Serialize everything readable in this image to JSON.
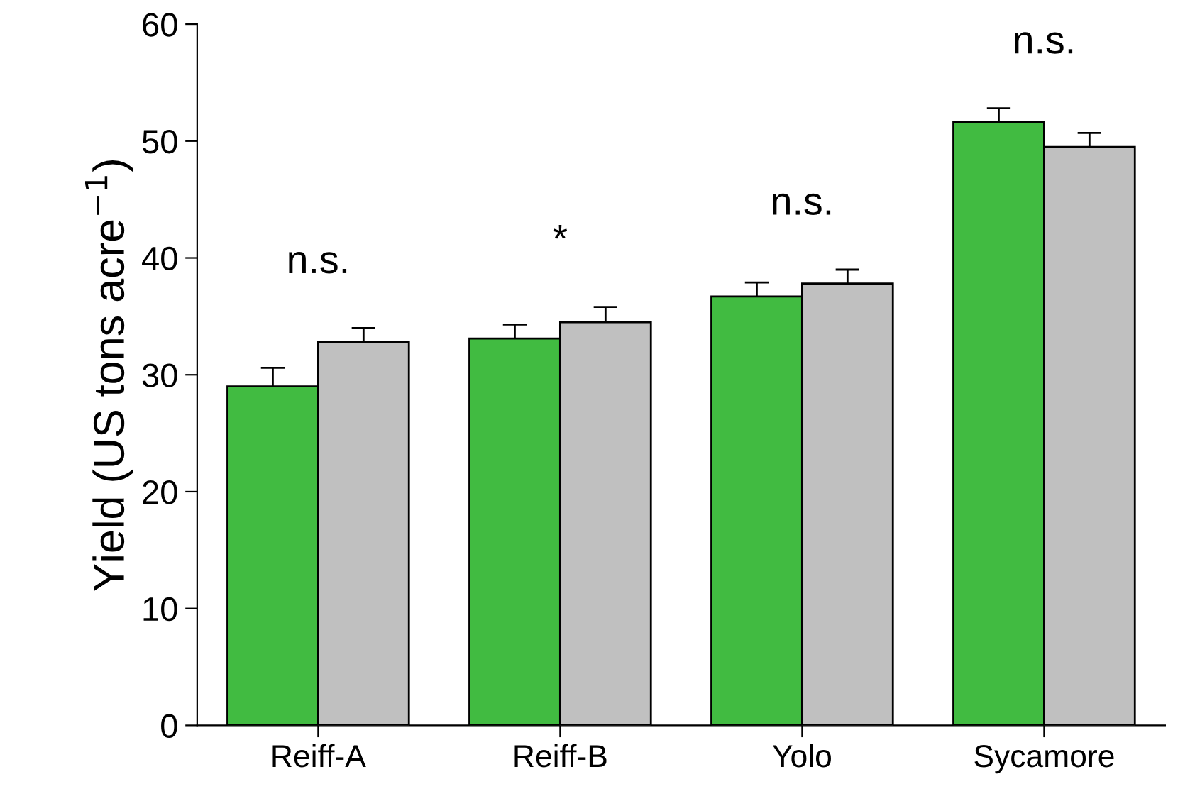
{
  "chart_data": {
    "type": "bar",
    "ylabel": "Yield (US tons acre$^{−1}$)",
    "categories": [
      "Reiff-A",
      "Reiff-B",
      "Yolo",
      "Sycamore"
    ],
    "series": [
      {
        "color": "#41bb41",
        "values": [
          29.0,
          33.1,
          36.7,
          51.6
        ],
        "errors": [
          1.6,
          1.2,
          1.2,
          1.2
        ]
      },
      {
        "color": "#c0c0c0",
        "values": [
          32.8,
          34.5,
          37.8,
          49.5
        ],
        "errors": [
          1.2,
          1.3,
          1.2,
          1.2
        ]
      }
    ],
    "ylim": [
      0,
      60
    ],
    "yticks": [
      0,
      10,
      20,
      30,
      40,
      50,
      60
    ],
    "grid": false,
    "legend": false,
    "annotations": [
      "n.s.",
      "*",
      "n.s.",
      "n.s."
    ]
  }
}
